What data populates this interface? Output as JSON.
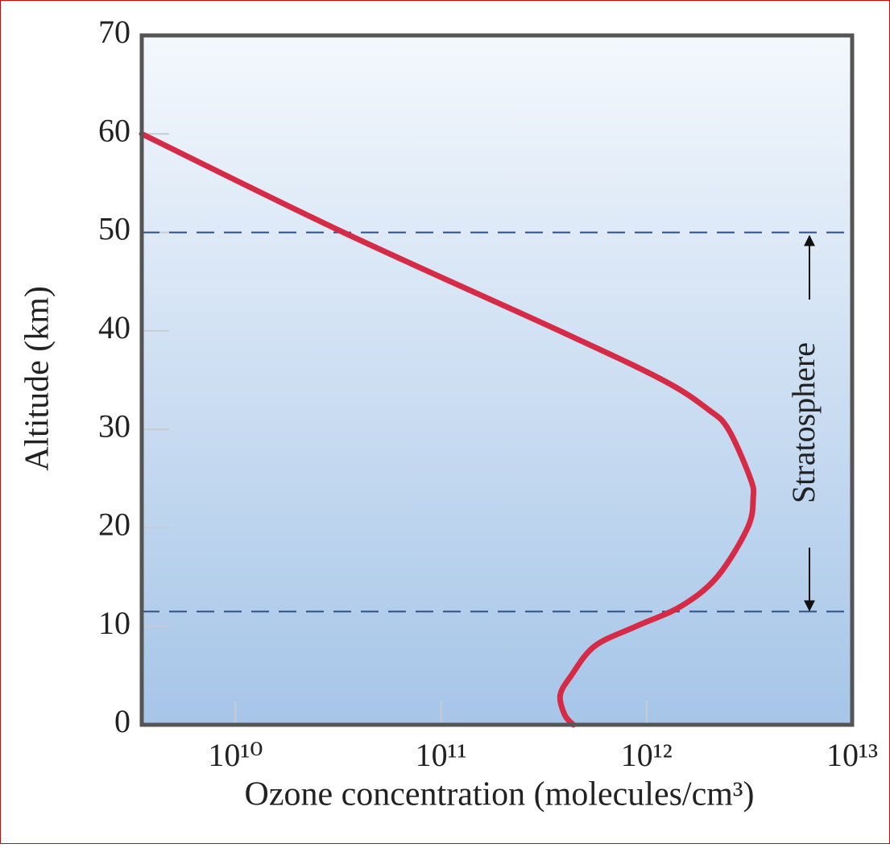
{
  "chart_data": {
    "type": "line",
    "xlabel": "Ozone concentration (molecules/cm³)",
    "ylabel": "Altitude (km)",
    "xscale": "log",
    "xlim": [
      3500000000.0,
      10000000000000.0
    ],
    "xticks": [
      {
        "value": 10000000000.0,
        "label": "10¹⁰"
      },
      {
        "value": 100000000000.0,
        "label": "10¹¹"
      },
      {
        "value": 1000000000000.0,
        "label": "10¹²"
      },
      {
        "value": 10000000000000.0,
        "label": "10¹³"
      }
    ],
    "ylim": [
      0,
      70
    ],
    "yticks": [
      0,
      10,
      20,
      30,
      40,
      50,
      60,
      70
    ],
    "color": "#d62b47",
    "x": [
      3500000000.0,
      33500000000.0,
      377000000000.0,
      1200000000000.0,
      2000000000000.0,
      2500000000000.0,
      3200000000000.0,
      3300000000000.0,
      3100000000000.0,
      2200000000000.0,
      1460000000000.0,
      890000000000.0,
      560000000000.0,
      430000000000.0,
      380000000000.0,
      400000000000.0,
      440000000000.0
    ],
    "values": [
      60,
      50,
      40,
      35,
      32,
      30,
      25,
      23,
      20,
      15,
      12,
      10,
      8,
      5,
      3,
      1,
      0
    ],
    "hlines": [
      50,
      11.5
    ],
    "hline_color": "#2f4f86",
    "annotation": "Stratosphere"
  }
}
